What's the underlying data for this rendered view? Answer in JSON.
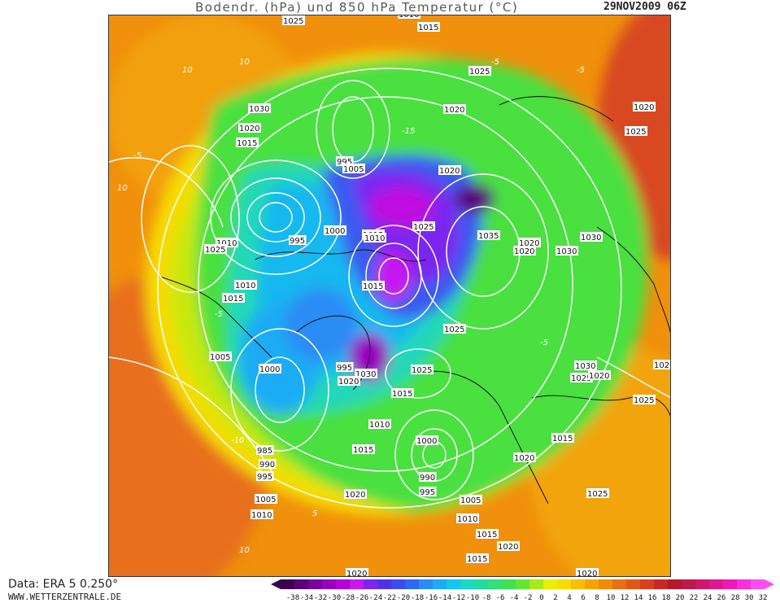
{
  "title": "Bodendr. (hPa) und 850 hPa Temperatur (°C)",
  "date": "29NOV2009 06Z",
  "source_line1": "Data: ERA 5 0.250°",
  "source_line2": "WWW.WETTERZENTRALE.DE",
  "legend": {
    "ticks": [
      "-38",
      "-34",
      "-32",
      "-30",
      "-28",
      "-26",
      "-24",
      "-22",
      "-20",
      "-18",
      "-16",
      "-14",
      "-12",
      "-10",
      "-8",
      "-6",
      "-4",
      "-2",
      "0",
      "2",
      "4",
      "6",
      "8",
      "10",
      "12",
      "14",
      "16",
      "18",
      "20",
      "22",
      "24",
      "26",
      "28",
      "30",
      "32"
    ],
    "colors": [
      "#3d0050",
      "#5a007a",
      "#7a00a0",
      "#9a00c0",
      "#b400dc",
      "#c818f0",
      "#7a28f0",
      "#5232e6",
      "#3a4cf0",
      "#2a6af5",
      "#2a8cf5",
      "#1aacf5",
      "#10c8f0",
      "#18d8c8",
      "#20dca0",
      "#30e078",
      "#40e050",
      "#60e830",
      "#a8ea18",
      "#e8f000",
      "#f8dc00",
      "#f8c000",
      "#f8a400",
      "#f08a08",
      "#e87010",
      "#e05818",
      "#d84020",
      "#c82828",
      "#b8182c",
      "#c01848",
      "#d0186a",
      "#e01890",
      "#f018b8",
      "#f830dc",
      "#f850f0"
    ]
  },
  "isobar_labels": [
    "1010",
    "1025",
    "1015",
    "1030",
    "1020",
    "1025",
    "1015",
    "995",
    "1005",
    "1020",
    "1020",
    "1015",
    "1025",
    "1035",
    "1000",
    "1010",
    "995",
    "1010",
    "1025",
    "1020",
    "1010",
    "1015",
    "1030",
    "1020",
    "1030",
    "1020",
    "1025",
    "1015",
    "1025",
    "1005",
    "1000",
    "995",
    "1030",
    "1020",
    "1025",
    "1015",
    "1010",
    "1000",
    "1015",
    "1020",
    "1030",
    "1025",
    "1020",
    "1020",
    "1025",
    "1015",
    "985",
    "990",
    "995",
    "1005",
    "1010",
    "1020",
    "990",
    "995",
    "1005",
    "1010",
    "1015",
    "1020",
    "1025",
    "1015",
    "1020",
    "1020"
  ],
  "colors": {
    "accent": "#f8dc00"
  }
}
